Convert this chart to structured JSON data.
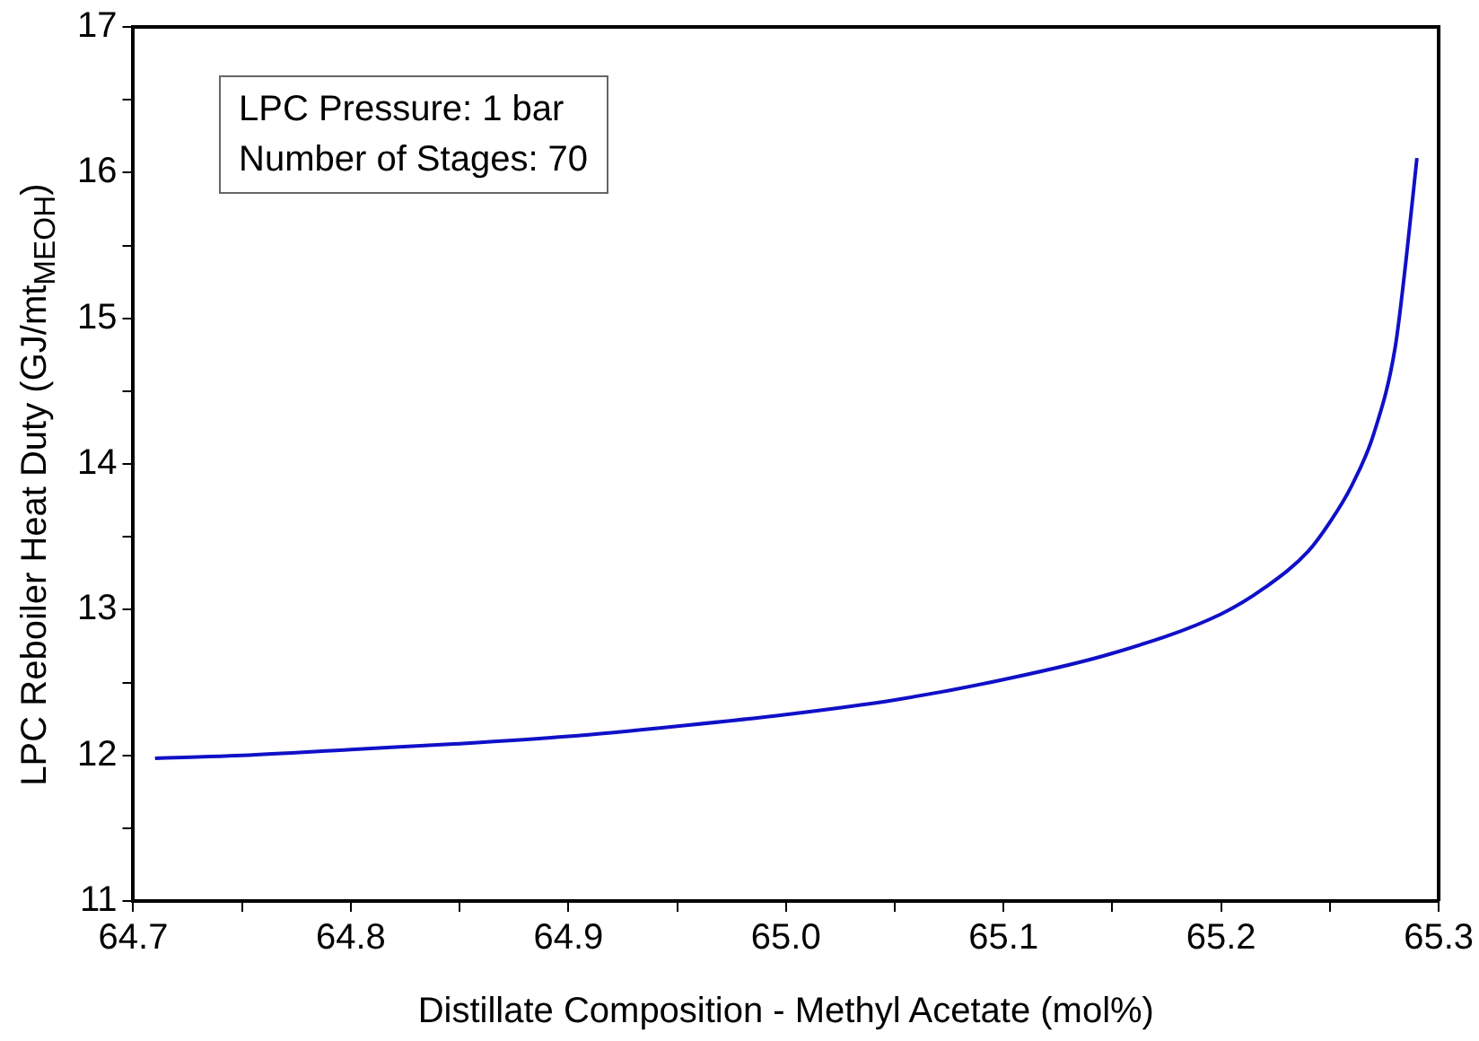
{
  "chart_data": {
    "type": "line",
    "xlabel": "Distillate Composition - Methyl Acetate (mol%)",
    "ylabel": "LPC Reboiler Heat Duty (GJ/mt$_{MEOH}$)",
    "annotations": [
      "LPC Pressure: 1 bar\nNumber of Stages: 70"
    ],
    "x": [
      64.71,
      64.75,
      64.8,
      64.85,
      64.9,
      64.95,
      65.0,
      65.05,
      65.1,
      65.15,
      65.2,
      65.22,
      65.24,
      65.25,
      65.26,
      65.27,
      65.28,
      65.285,
      65.29
    ],
    "series": [
      {
        "color": "#1010c8",
        "values": [
          11.98,
          12.0,
          12.04,
          12.08,
          12.13,
          12.2,
          12.28,
          12.38,
          12.52,
          12.7,
          12.97,
          13.15,
          13.4,
          13.6,
          13.85,
          14.2,
          14.8,
          15.4,
          16.1
        ]
      }
    ],
    "xlim": [
      64.7,
      65.3
    ],
    "xticks": [
      64.7,
      {
        "value": 64.75,
        "label": null
      },
      64.8,
      {
        "value": 64.85,
        "label": null
      },
      64.9,
      {
        "value": 64.95,
        "label": null
      },
      {
        "value": 65,
        "label": "65.0"
      },
      {
        "value": 65.05,
        "label": null
      },
      65.1,
      {
        "value": 65.15,
        "label": null
      },
      65.2,
      {
        "value": 65.25,
        "label": null
      },
      65.3
    ],
    "ylim": [
      11,
      17
    ],
    "yticks": [
      11,
      {
        "value": 11.5,
        "label": null
      },
      12,
      {
        "value": 12.5,
        "label": null
      },
      13,
      {
        "value": 13.5,
        "label": null
      },
      14,
      {
        "value": 14.5,
        "label": null
      },
      15,
      {
        "value": 15.5,
        "label": null
      },
      16,
      {
        "value": 16.5,
        "label": null
      },
      17
    ],
    "grid": false,
    "legend": false,
    "marker": "none",
    "line_style": "solid"
  }
}
